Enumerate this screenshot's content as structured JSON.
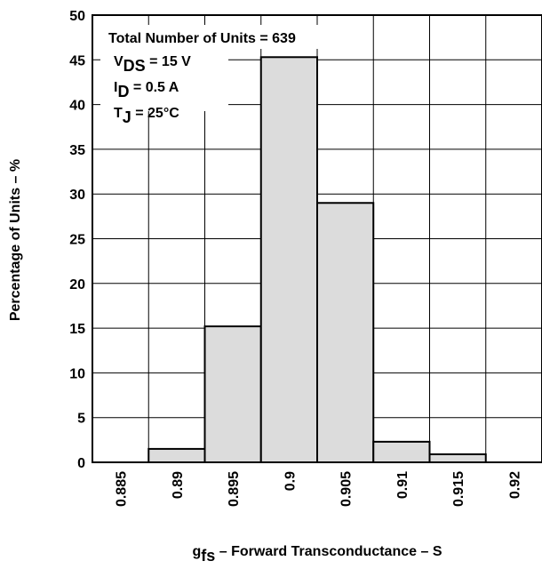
{
  "chart_data": {
    "type": "histogram",
    "xlabel": {
      "main": "g",
      "sub": "fs",
      "rest": " – Forward Transconductance – S"
    },
    "ylabel": "Percentage of Units – %",
    "annotations": [
      {
        "main": "Total Number of Units = 639"
      },
      {
        "main": "V",
        "sub": "DS",
        "rest": " = 15 V"
      },
      {
        "main": "I",
        "sub": "D",
        "rest": " = 0.5 A"
      },
      {
        "main": "T",
        "sub": "J",
        "rest": " = 25°C"
      }
    ],
    "bins": [
      0.8825,
      0.8875,
      0.8925,
      0.8975,
      0.9025,
      0.9075,
      0.9125,
      0.9175,
      0.9225
    ],
    "values": [
      0,
      1.5,
      15.2,
      45.3,
      29,
      2.3,
      0.9,
      0
    ],
    "color": "#dcdcdc",
    "xlim": [
      0.8825,
      0.9225
    ],
    "xticks": [
      0.885,
      0.89,
      0.895,
      0.9,
      0.905,
      0.91,
      0.915,
      0.92
    ],
    "ylim": [
      0,
      50
    ],
    "yticks": [
      0,
      5,
      10,
      15,
      20,
      25,
      30,
      35,
      40,
      45,
      50
    ],
    "grid": true
  }
}
